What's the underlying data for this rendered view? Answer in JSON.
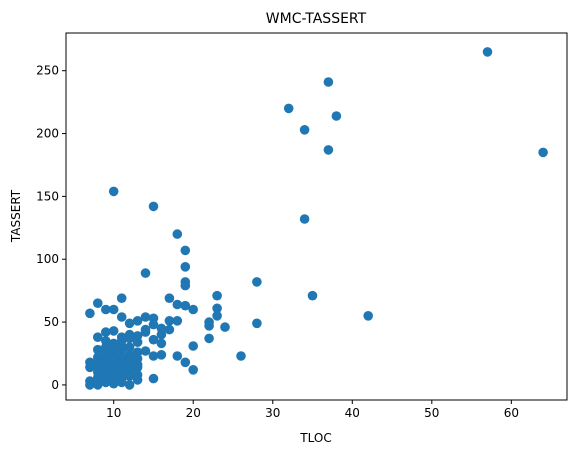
{
  "chart_data": {
    "type": "scatter",
    "title": "WMC-TASSERT",
    "xlabel": "TLOC",
    "ylabel": "TASSERT",
    "xlim": [
      4,
      67
    ],
    "ylim": [
      -12,
      280
    ],
    "xticks": [
      10,
      20,
      30,
      40,
      50,
      60
    ],
    "yticks": [
      0,
      50,
      100,
      150,
      200,
      250
    ],
    "color": "#1f77b4",
    "grid": false,
    "legend": false,
    "points": [
      [
        57,
        265
      ],
      [
        37,
        241
      ],
      [
        38,
        214
      ],
      [
        32,
        220
      ],
      [
        34,
        203
      ],
      [
        37,
        187
      ],
      [
        64,
        185
      ],
      [
        34,
        132
      ],
      [
        10,
        154
      ],
      [
        15,
        142
      ],
      [
        18,
        120
      ],
      [
        19,
        107
      ],
      [
        19,
        94
      ],
      [
        14,
        89
      ],
      [
        19,
        82
      ],
      [
        19,
        79
      ],
      [
        28,
        82
      ],
      [
        35,
        71
      ],
      [
        23,
        71
      ],
      [
        17,
        69
      ],
      [
        11,
        69
      ],
      [
        8,
        65
      ],
      [
        18,
        64
      ],
      [
        19,
        63
      ],
      [
        20,
        60
      ],
      [
        23,
        61
      ],
      [
        9,
        60
      ],
      [
        10,
        60
      ],
      [
        7,
        57
      ],
      [
        23,
        55
      ],
      [
        42,
        55
      ],
      [
        11,
        54
      ],
      [
        14,
        54
      ],
      [
        15,
        53
      ],
      [
        13,
        51
      ],
      [
        17,
        51
      ],
      [
        18,
        51
      ],
      [
        22,
        50
      ],
      [
        28,
        49
      ],
      [
        12,
        49
      ],
      [
        15,
        48
      ],
      [
        22,
        47
      ],
      [
        24,
        46
      ],
      [
        16,
        45
      ],
      [
        17,
        44
      ],
      [
        10,
        43
      ],
      [
        9,
        42
      ],
      [
        14,
        42
      ],
      [
        12,
        40
      ],
      [
        16,
        40
      ],
      [
        8,
        38
      ],
      [
        11,
        38
      ],
      [
        22,
        37
      ],
      [
        15,
        36
      ],
      [
        9,
        35
      ],
      [
        13,
        34
      ],
      [
        16,
        33
      ],
      [
        20,
        31
      ],
      [
        10,
        30
      ],
      [
        12,
        30
      ],
      [
        8,
        28
      ],
      [
        11,
        28
      ],
      [
        14,
        27
      ],
      [
        9,
        26
      ],
      [
        13,
        26
      ],
      [
        10,
        25
      ],
      [
        12,
        24
      ],
      [
        16,
        24
      ],
      [
        15,
        23
      ],
      [
        18,
        23
      ],
      [
        26,
        23
      ],
      [
        8,
        22
      ],
      [
        11,
        22
      ],
      [
        9,
        21
      ],
      [
        13,
        21
      ],
      [
        10,
        20
      ],
      [
        12,
        20
      ],
      [
        7,
        18
      ],
      [
        19,
        18
      ],
      [
        8,
        17
      ],
      [
        11,
        17
      ],
      [
        9,
        16
      ],
      [
        13,
        16
      ],
      [
        10,
        15
      ],
      [
        12,
        15
      ],
      [
        7,
        14
      ],
      [
        8,
        13
      ],
      [
        11,
        13
      ],
      [
        9,
        12
      ],
      [
        20,
        12
      ],
      [
        10,
        11
      ],
      [
        12,
        11
      ],
      [
        8,
        10
      ],
      [
        11,
        9
      ],
      [
        9,
        8
      ],
      [
        13,
        8
      ],
      [
        10,
        7
      ],
      [
        12,
        7
      ],
      [
        8,
        6
      ],
      [
        15,
        5
      ],
      [
        9,
        5
      ],
      [
        11,
        5
      ],
      [
        10,
        4
      ],
      [
        13,
        4
      ],
      [
        7,
        3
      ],
      [
        8,
        3
      ],
      [
        9,
        2
      ],
      [
        11,
        2
      ],
      [
        10,
        1
      ],
      [
        7,
        0
      ],
      [
        8,
        0
      ],
      [
        12,
        0
      ],
      [
        9,
        30
      ],
      [
        10,
        33
      ],
      [
        11,
        35
      ],
      [
        12,
        37
      ],
      [
        13,
        39
      ],
      [
        14,
        44
      ],
      [
        9,
        24
      ],
      [
        10,
        27
      ],
      [
        11,
        31
      ],
      [
        8,
        19
      ],
      [
        12,
        19
      ],
      [
        13,
        14
      ],
      [
        10,
        9
      ],
      [
        11,
        11
      ]
    ]
  }
}
